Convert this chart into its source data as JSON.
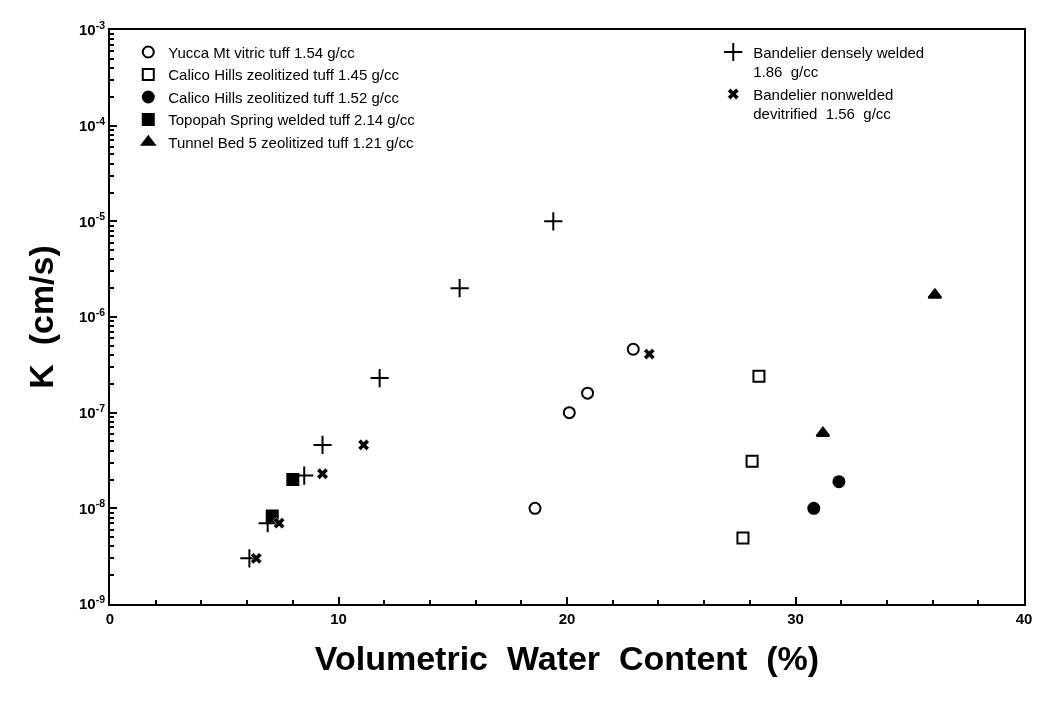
{
  "chart_data": {
    "type": "scatter",
    "xlabel": "Volumetric  Water  Content  (%)",
    "ylabel": "K  (cm/s)",
    "log": "y",
    "legend": "top",
    "xlim": [
      0,
      40
    ],
    "xticks": [
      0,
      10,
      20,
      30,
      40
    ],
    "ylim": [
      1e-09,
      0.001
    ],
    "yticks": [
      {
        "value": 1e-09,
        "label": "10$^{-9}$"
      },
      {
        "value": 1e-08,
        "label": "10$^{-8}$"
      },
      {
        "value": 1e-07,
        "label": "10$^{-7}$"
      },
      {
        "value": 1e-06,
        "label": "10$^{-6}$"
      },
      {
        "value": 1e-05,
        "label": "10$^{-5}$"
      },
      {
        "value": 0.0001,
        "label": "10$^{-4}$"
      },
      {
        "value": 0.001,
        "label": "10$^{-3}$"
      }
    ],
    "series": [
      {
        "name": "Yucca Mt vitric tuff 1.54 g/cc",
        "color": "#000000",
        "marker": "circle-open",
        "x": [
          18.6,
          20.1,
          20.9,
          22.9
        ],
        "values": [
          1e-08,
          1e-07,
          1.6e-07,
          4.6e-07
        ]
      },
      {
        "name": "Calico Hills zeolitized tuff 1.45 g/cc",
        "color": "#000000",
        "marker": "square-open",
        "x": [
          27.7,
          28.1,
          28.4
        ],
        "values": [
          4.9e-09,
          3.1e-08,
          2.4e-07
        ]
      },
      {
        "name": "Calico Hills zeolitized tuff 1.52 g/cc",
        "color": "#000000",
        "marker": "circle",
        "x": [
          30.8,
          31.9
        ],
        "values": [
          1e-08,
          1.9e-08
        ]
      },
      {
        "name": "Topopah Spring welded tuff 2.14 g/cc",
        "color": "#000000",
        "marker": "square",
        "x": [
          7.1,
          8.0
        ],
        "values": [
          8.3e-09,
          2e-08
        ]
      },
      {
        "name": "Tunnel Bed 5 zeolitized tuff 1.21 g/cc",
        "color": "#000000",
        "marker": "triangle",
        "x": [
          31.2,
          36.1
        ],
        "values": [
          6.1e-08,
          1.7e-06
        ]
      },
      {
        "name": "Bandelier densely welded\n1.86  g/cc",
        "color": "#000000",
        "marker": "cross",
        "x": [
          6.1,
          6.9,
          8.5,
          9.3,
          11.8,
          15.3,
          19.4
        ],
        "values": [
          3e-09,
          7e-09,
          2.2e-08,
          4.6e-08,
          2.3e-07,
          2e-06,
          1e-05
        ]
      },
      {
        "name": "Bandelier nonwelded\ndevitrified  1.56  g/cc",
        "color": "#000000",
        "marker": "x",
        "x": [
          6.4,
          7.4,
          9.3,
          11.1,
          23.6
        ],
        "values": [
          3e-09,
          7e-09,
          2.3e-08,
          4.6e-08,
          4.1e-07
        ]
      }
    ]
  }
}
